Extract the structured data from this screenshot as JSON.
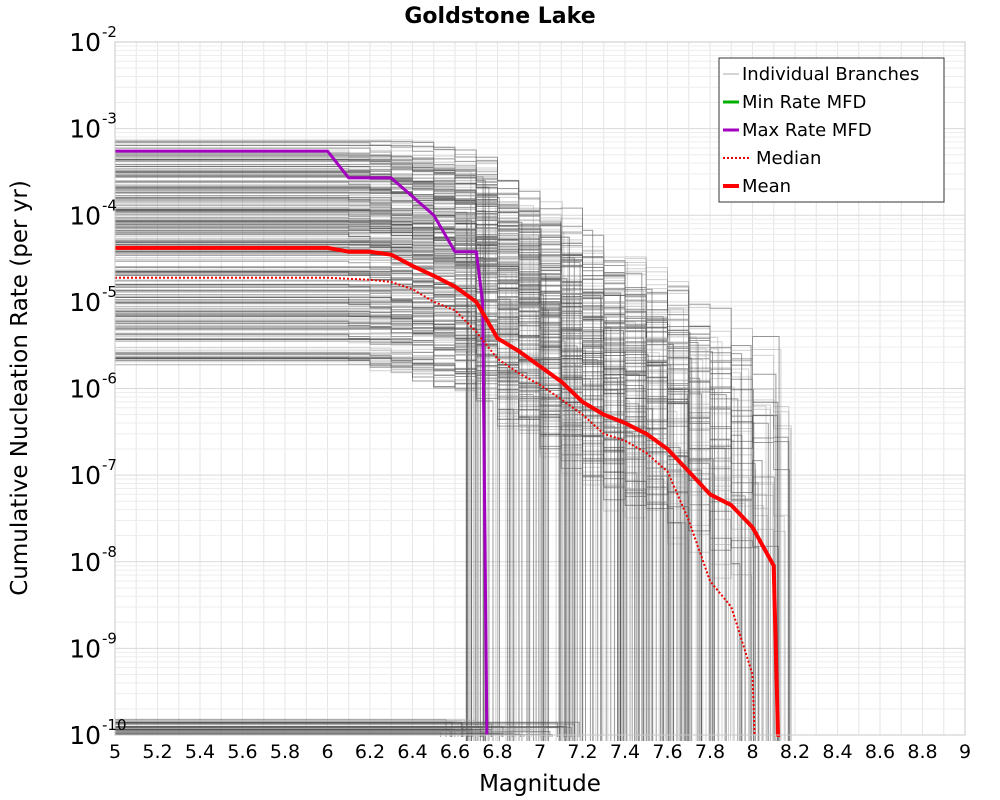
{
  "chart_data": {
    "type": "line",
    "title": "Goldstone Lake",
    "xlabel": "Magnitude",
    "ylabel": "Cumulative Nucleation Rate (per yr)",
    "xlim": [
      5,
      9
    ],
    "ylim_log10": [
      -10,
      -2
    ],
    "y_scale": "log",
    "grid": true,
    "x_ticks": [
      "5",
      "5.2",
      "5.4",
      "5.6",
      "5.8",
      "6",
      "6.2",
      "6.4",
      "6.6",
      "6.8",
      "7",
      "7.2",
      "7.4",
      "7.6",
      "7.8",
      "8",
      "8.2",
      "8.4",
      "8.6",
      "8.8",
      "9"
    ],
    "y_ticks": [
      {
        "base": "10",
        "exp": "-2"
      },
      {
        "base": "10",
        "exp": "-3"
      },
      {
        "base": "10",
        "exp": "-4"
      },
      {
        "base": "10",
        "exp": "-5"
      },
      {
        "base": "10",
        "exp": "-6"
      },
      {
        "base": "10",
        "exp": "-7"
      },
      {
        "base": "10",
        "exp": "-8"
      },
      {
        "base": "10",
        "exp": "-9"
      },
      {
        "base": "10",
        "exp": "-10"
      }
    ],
    "legend_position": "top-right",
    "legend": [
      {
        "label": "Individual Branches",
        "color": "#aaaaaa",
        "style": "thin"
      },
      {
        "label": "Min Rate MFD",
        "color": "#00b000",
        "style": "solid"
      },
      {
        "label": "Max Rate MFD",
        "color": "#a400c0",
        "style": "solid"
      },
      {
        "label": "Median",
        "color": "#ee0000",
        "style": "dotted"
      },
      {
        "label": "Mean",
        "color": "#ff0000",
        "style": "thick"
      }
    ],
    "series": [
      {
        "name": "Max Rate MFD",
        "color": "#a400c0",
        "x": [
          5.0,
          6.0,
          6.1,
          6.3,
          6.5,
          6.6,
          6.7,
          6.73,
          6.75
        ],
        "y": [
          0.00055,
          0.00055,
          0.00027,
          0.00027,
          0.0001,
          3.8e-05,
          3.8e-05,
          1e-05,
          1e-10
        ]
      },
      {
        "name": "Mean",
        "color": "#ff0000",
        "x": [
          5.0,
          6.0,
          6.1,
          6.2,
          6.3,
          6.4,
          6.5,
          6.6,
          6.7,
          6.8,
          6.9,
          7.0,
          7.1,
          7.2,
          7.3,
          7.4,
          7.5,
          7.6,
          7.7,
          7.8,
          7.9,
          8.0,
          8.1,
          8.12,
          8.13
        ],
        "y": [
          4.2e-05,
          4.2e-05,
          3.8e-05,
          3.8e-05,
          3.5e-05,
          2.6e-05,
          2e-05,
          1.5e-05,
          1e-05,
          3.8e-06,
          2.7e-06,
          1.8e-06,
          1.2e-06,
          7e-07,
          5e-07,
          4e-07,
          3e-07,
          2e-07,
          1.1e-07,
          6e-08,
          4.5e-08,
          2.5e-08,
          9e-09,
          1e-10,
          1e-10
        ]
      },
      {
        "name": "Median",
        "color": "#ee0000",
        "x": [
          5.0,
          6.0,
          6.2,
          6.3,
          6.4,
          6.5,
          6.6,
          6.7,
          6.8,
          6.9,
          7.0,
          7.1,
          7.2,
          7.3,
          7.4,
          7.5,
          7.6,
          7.7,
          7.8,
          7.9,
          8.0,
          8.01
        ],
        "y": [
          1.9e-05,
          1.9e-05,
          1.8e-05,
          1.7e-05,
          1.4e-05,
          1e-05,
          8e-06,
          4.5e-06,
          2.2e-06,
          1.5e-06,
          1.1e-06,
          7.5e-07,
          5e-07,
          3e-07,
          2.5e-07,
          1.8e-07,
          1.1e-07,
          3e-08,
          6e-09,
          3e-09,
          5e-10,
          1e-10
        ]
      }
    ]
  }
}
